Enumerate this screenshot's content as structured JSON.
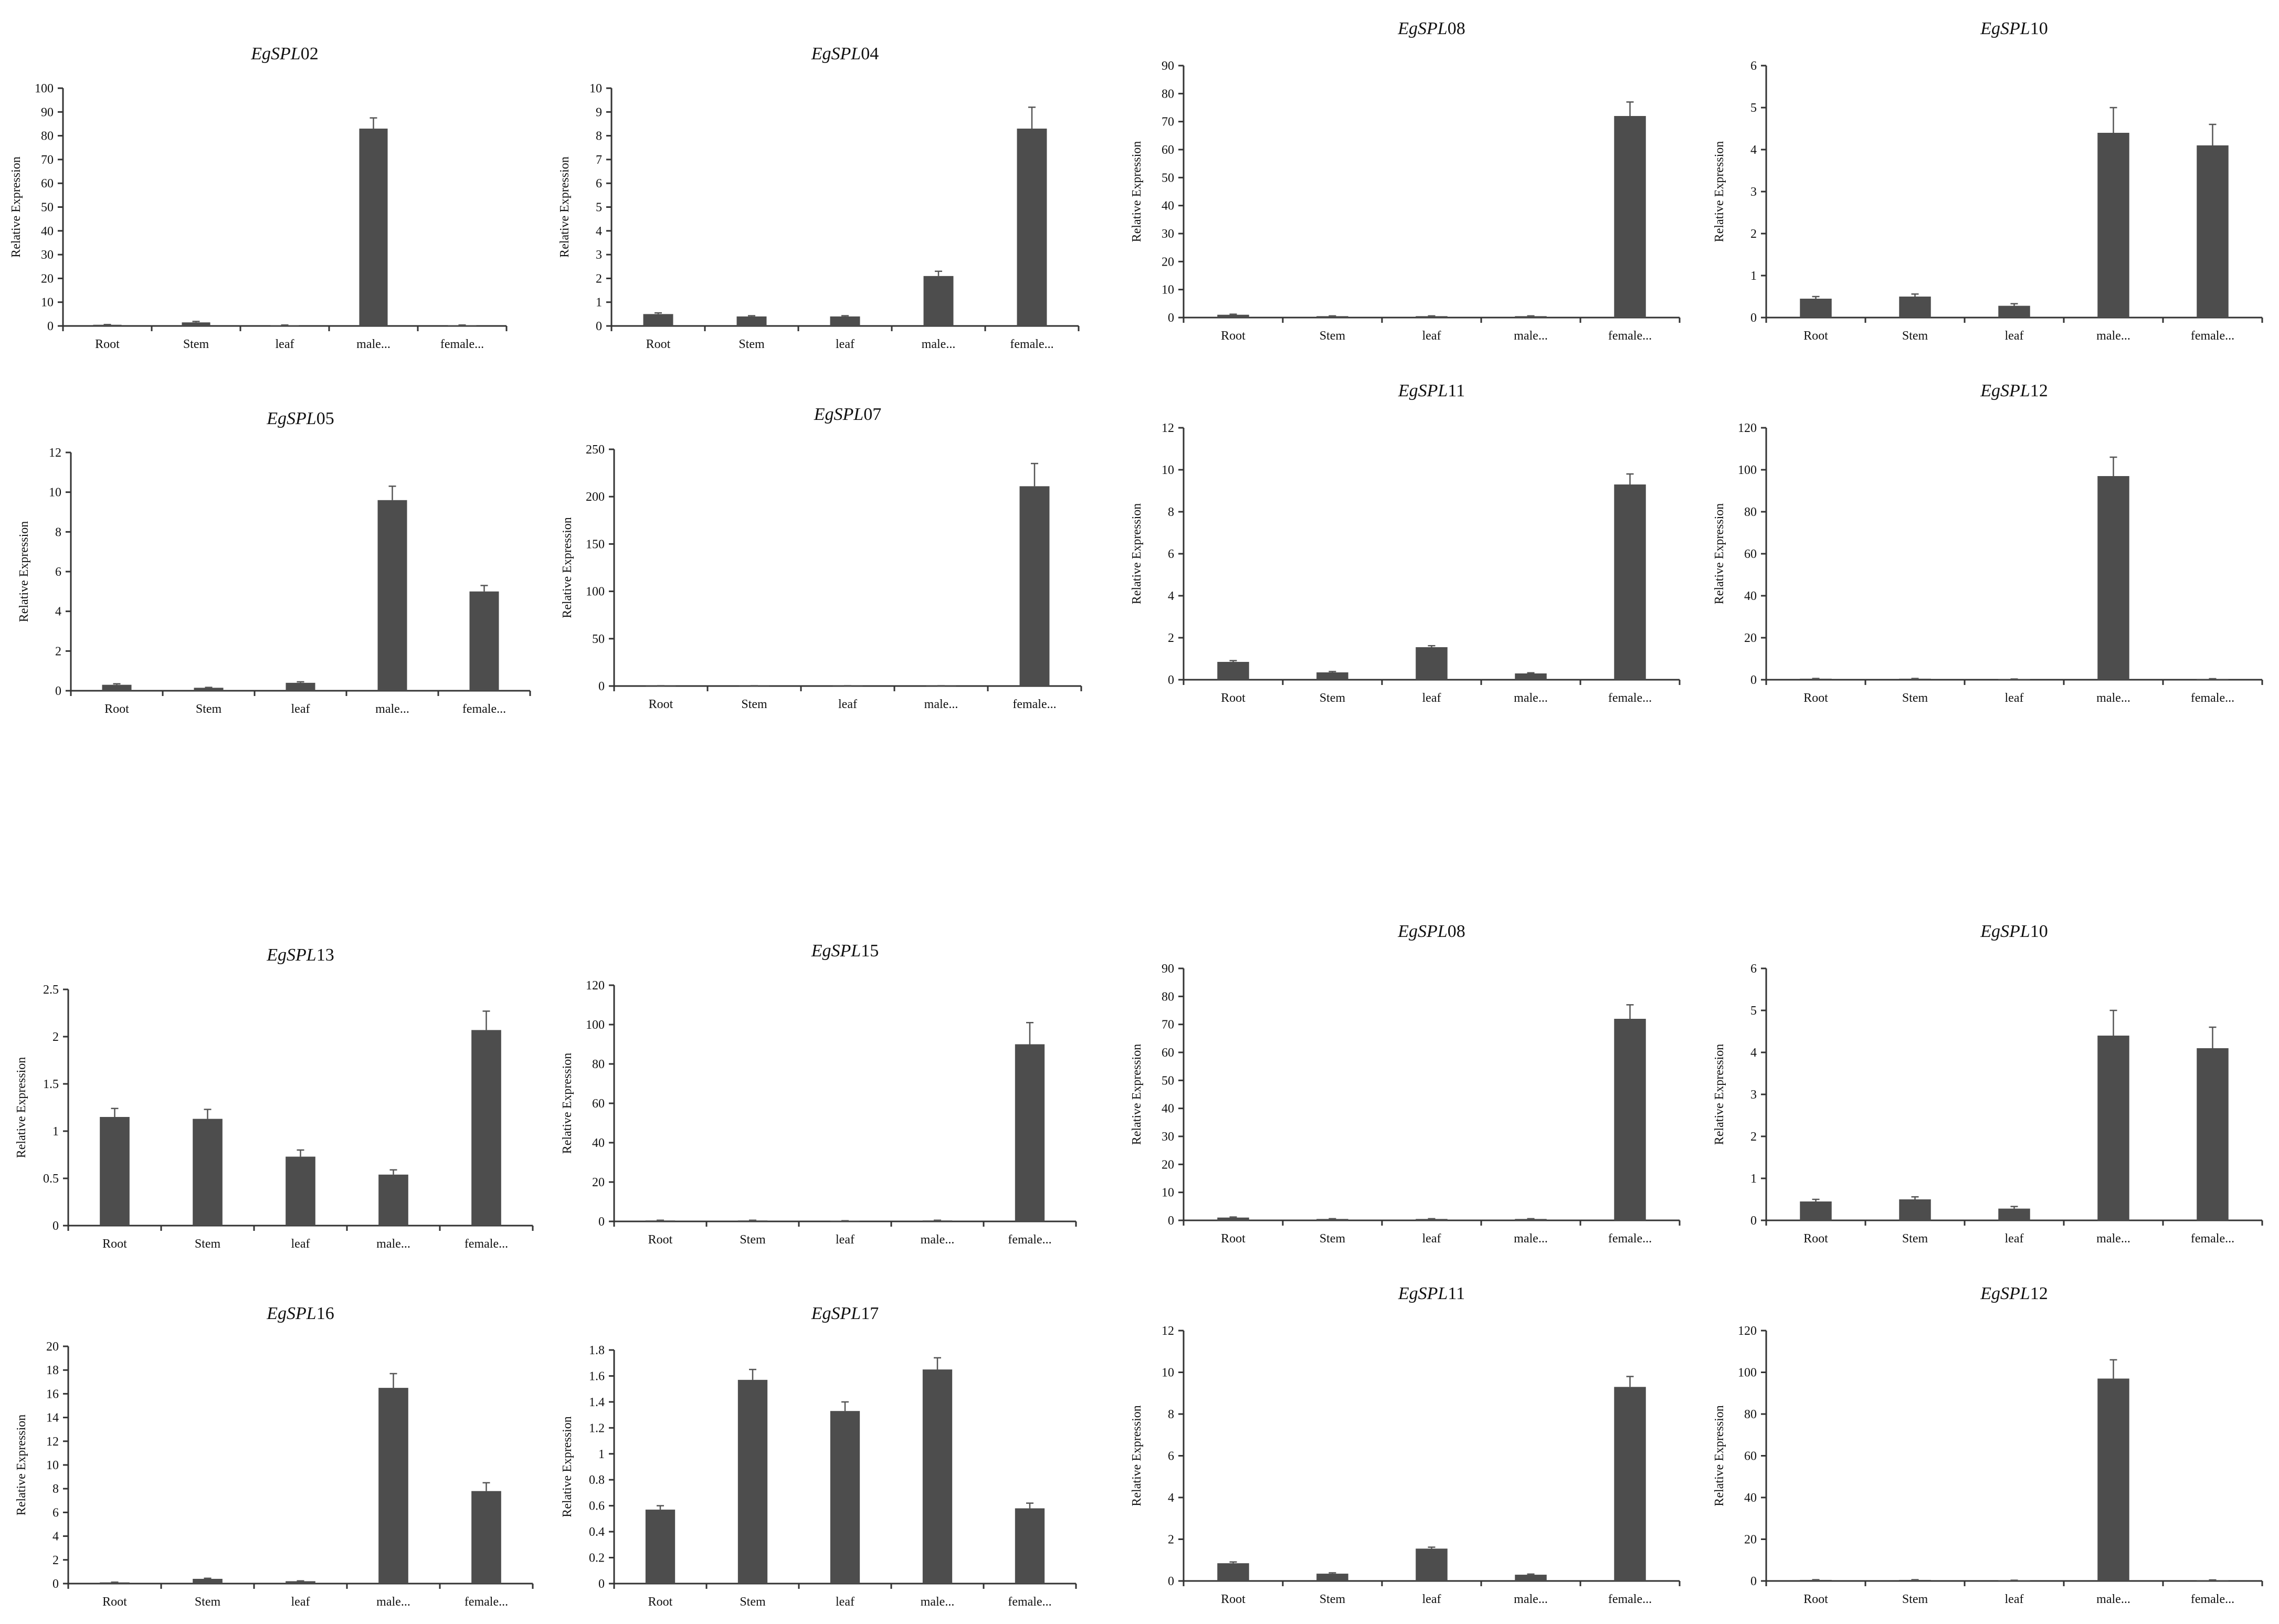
{
  "chart_data": [
    {
      "type": "bar",
      "title_italic": "EgSPL",
      "title_suffix": "02",
      "ylabel": "Relative Expression",
      "categories": [
        "Root",
        "Stem",
        "leaf",
        "male...",
        "female..."
      ],
      "values": [
        0.5,
        1.5,
        0.3,
        83,
        0.3
      ],
      "errors": [
        0.1,
        0.4,
        0.1,
        4.5,
        0.1
      ],
      "ylim": [
        0,
        100
      ],
      "ticks": [
        0,
        10,
        20,
        30,
        40,
        50,
        60,
        70,
        80,
        90,
        100
      ]
    },
    {
      "type": "bar",
      "title_italic": "EgSPL",
      "title_suffix": "04",
      "ylabel": "Relative Expression",
      "categories": [
        "Root",
        "Stem",
        "leaf",
        "male...",
        "female..."
      ],
      "values": [
        0.5,
        0.4,
        0.4,
        2.1,
        8.3
      ],
      "errors": [
        0.05,
        0.03,
        0.03,
        0.2,
        0.9
      ],
      "ylim": [
        0,
        10
      ],
      "ticks": [
        0,
        1,
        2,
        3,
        4,
        5,
        6,
        7,
        8,
        9,
        10
      ]
    },
    {
      "type": "bar",
      "title_italic": "EgSPL",
      "title_suffix": "08",
      "ylabel": "Relative Expression",
      "categories": [
        "Root",
        "Stem",
        "leaf",
        "male...",
        "female..."
      ],
      "values": [
        1,
        0.5,
        0.5,
        0.5,
        72
      ],
      "errors": [
        0.2,
        0.1,
        0.1,
        0.1,
        5
      ],
      "ylim": [
        0,
        90
      ],
      "ticks": [
        0,
        10,
        20,
        30,
        40,
        50,
        60,
        70,
        80,
        90
      ]
    },
    {
      "type": "bar",
      "title_italic": "EgSPL",
      "title_suffix": "10",
      "ylabel": "Relative Expression",
      "categories": [
        "Root",
        "Stem",
        "leaf",
        "male...",
        "female..."
      ],
      "values": [
        0.45,
        0.5,
        0.28,
        4.4,
        4.1
      ],
      "errors": [
        0.05,
        0.06,
        0.05,
        0.6,
        0.5
      ],
      "ylim": [
        0,
        6
      ],
      "ticks": [
        0,
        1,
        2,
        3,
        4,
        5,
        6
      ]
    },
    {
      "type": "bar",
      "title_italic": "EgSPL",
      "title_suffix": "05",
      "ylabel": "Relative Expression",
      "categories": [
        "Root",
        "Stem",
        "leaf",
        "male...",
        "female..."
      ],
      "values": [
        0.3,
        0.15,
        0.4,
        9.6,
        5
      ],
      "errors": [
        0.05,
        0.02,
        0.05,
        0.7,
        0.3
      ],
      "ylim": [
        0,
        12
      ],
      "ticks": [
        0,
        2,
        4,
        6,
        8,
        10,
        12
      ]
    },
    {
      "type": "bar",
      "title_italic": "EgSPL",
      "title_suffix": "07",
      "ylabel": "Relative Expression",
      "categories": [
        "Root",
        "Stem",
        "leaf",
        "male...",
        "female..."
      ],
      "values": [
        0.3,
        0.3,
        0.3,
        0.3,
        211
      ],
      "errors": [
        0.05,
        0.05,
        0.05,
        0.05,
        24
      ],
      "ylim": [
        0,
        250
      ],
      "ticks": [
        0,
        50,
        100,
        150,
        200,
        250
      ]
    },
    {
      "type": "bar",
      "title_italic": "EgSPL",
      "title_suffix": "11",
      "ylabel": "Relative Expression",
      "categories": [
        "Root",
        "Stem",
        "leaf",
        "male...",
        "female..."
      ],
      "values": [
        0.85,
        0.35,
        1.55,
        0.3,
        9.3
      ],
      "errors": [
        0.06,
        0.04,
        0.07,
        0.03,
        0.5
      ],
      "ylim": [
        0,
        12
      ],
      "ticks": [
        0,
        2,
        4,
        6,
        8,
        10,
        12
      ]
    },
    {
      "type": "bar",
      "title_italic": "EgSPL",
      "title_suffix": "12",
      "ylabel": "Relative Expression",
      "categories": [
        "Root",
        "Stem",
        "leaf",
        "male...",
        "female..."
      ],
      "values": [
        0.5,
        0.5,
        0.3,
        97,
        0.4
      ],
      "errors": [
        0.1,
        0.1,
        0.05,
        9,
        0.1
      ],
      "ylim": [
        0,
        120
      ],
      "ticks": [
        0,
        20,
        40,
        60,
        80,
        100,
        120
      ]
    },
    {
      "type": "bar",
      "title_italic": "EgSPL",
      "title_suffix": "13",
      "ylabel": "Relative Expression",
      "categories": [
        "Root",
        "Stem",
        "leaf",
        "male...",
        "female..."
      ],
      "values": [
        1.15,
        1.13,
        0.73,
        0.54,
        2.07
      ],
      "errors": [
        0.09,
        0.1,
        0.07,
        0.05,
        0.2
      ],
      "ylim": [
        0,
        2.5
      ],
      "ticks": [
        0,
        0.5,
        1,
        1.5,
        2,
        2.5
      ]
    },
    {
      "type": "bar",
      "title_italic": "EgSPL",
      "title_suffix": "15",
      "ylabel": "Relative Expression",
      "categories": [
        "Root",
        "Stem",
        "leaf",
        "male...",
        "female..."
      ],
      "values": [
        0.5,
        0.5,
        0.3,
        0.5,
        90
      ],
      "errors": [
        0.1,
        0.1,
        0.05,
        0.1,
        11
      ],
      "ylim": [
        0,
        120
      ],
      "ticks": [
        0,
        20,
        40,
        60,
        80,
        100,
        120
      ]
    },
    {
      "type": "bar",
      "title_italic": "EgSPL",
      "title_suffix": "08",
      "ylabel": "Relative Expression",
      "categories": [
        "Root",
        "Stem",
        "leaf",
        "male...",
        "female..."
      ],
      "values": [
        1,
        0.5,
        0.5,
        0.5,
        72
      ],
      "errors": [
        0.2,
        0.1,
        0.1,
        0.1,
        5
      ],
      "ylim": [
        0,
        90
      ],
      "ticks": [
        0,
        10,
        20,
        30,
        40,
        50,
        60,
        70,
        80,
        90
      ]
    },
    {
      "type": "bar",
      "title_italic": "EgSPL",
      "title_suffix": "10",
      "ylabel": "Relative Expression",
      "categories": [
        "Root",
        "Stem",
        "leaf",
        "male...",
        "female..."
      ],
      "values": [
        0.45,
        0.5,
        0.28,
        4.4,
        4.1
      ],
      "errors": [
        0.05,
        0.06,
        0.05,
        0.6,
        0.5
      ],
      "ylim": [
        0,
        6
      ],
      "ticks": [
        0,
        1,
        2,
        3,
        4,
        5,
        6
      ]
    },
    {
      "type": "bar",
      "title_italic": "EgSPL",
      "title_suffix": "16",
      "ylabel": "Relative Expression",
      "categories": [
        "Root",
        "Stem",
        "leaf",
        "male...",
        "female..."
      ],
      "values": [
        0.1,
        0.4,
        0.2,
        16.5,
        7.8
      ],
      "errors": [
        0.02,
        0.05,
        0.03,
        1.2,
        0.7
      ],
      "ylim": [
        0,
        20
      ],
      "ticks": [
        0,
        2,
        4,
        6,
        8,
        10,
        12,
        14,
        16,
        18,
        20
      ]
    },
    {
      "type": "bar",
      "title_italic": "EgSPL",
      "title_suffix": "17",
      "ylabel": "Relative Expression",
      "categories": [
        "Root",
        "Stem",
        "leaf",
        "male...",
        "female..."
      ],
      "values": [
        0.57,
        1.57,
        1.33,
        1.65,
        0.58
      ],
      "errors": [
        0.03,
        0.08,
        0.07,
        0.09,
        0.04
      ],
      "ylim": [
        0,
        1.8
      ],
      "ticks": [
        0,
        0.2,
        0.4,
        0.6,
        0.8,
        1,
        1.2,
        1.4,
        1.6,
        1.8
      ]
    },
    {
      "type": "bar",
      "title_italic": "EgSPL",
      "title_suffix": "11",
      "ylabel": "Relative Expression",
      "categories": [
        "Root",
        "Stem",
        "leaf",
        "male...",
        "female..."
      ],
      "values": [
        0.85,
        0.35,
        1.55,
        0.3,
        9.3
      ],
      "errors": [
        0.06,
        0.04,
        0.07,
        0.03,
        0.5
      ],
      "ylim": [
        0,
        12
      ],
      "ticks": [
        0,
        2,
        4,
        6,
        8,
        10,
        12
      ]
    },
    {
      "type": "bar",
      "title_italic": "EgSPL",
      "title_suffix": "12",
      "ylabel": "Relative Expression",
      "categories": [
        "Root",
        "Stem",
        "leaf",
        "male...",
        "female..."
      ],
      "values": [
        0.5,
        0.5,
        0.3,
        97,
        0.4
      ],
      "errors": [
        0.1,
        0.1,
        0.05,
        9,
        0.1
      ],
      "ylim": [
        0,
        120
      ],
      "ticks": [
        0,
        20,
        40,
        60,
        80,
        100,
        120
      ]
    }
  ]
}
